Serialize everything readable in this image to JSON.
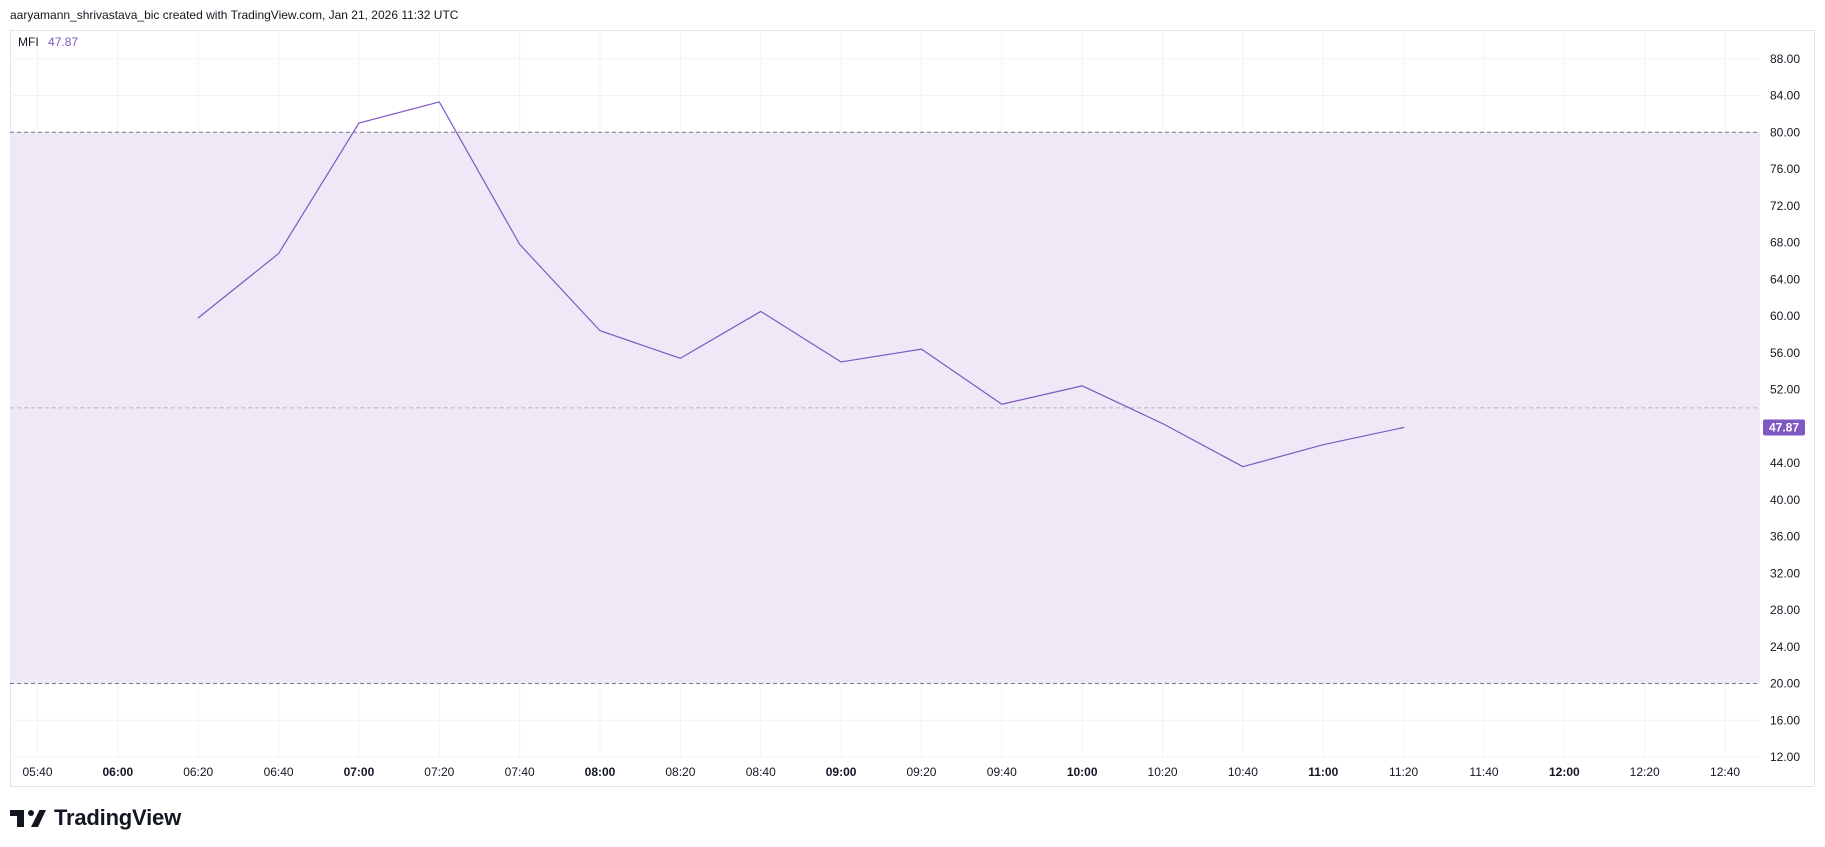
{
  "header": {
    "text": "aaryamann_shrivastava_bic created with TradingView.com, Jan 21, 2026 11:32 UTC"
  },
  "legend": {
    "name": "MFI",
    "value": "47.87"
  },
  "logo": {
    "text": "TradingView"
  },
  "colors": {
    "line": "#7e57c2",
    "band_fill": "#ede7f6",
    "label_bg": "#7e57c2",
    "grid": "#f0f3fa",
    "axis_text": "#131722"
  },
  "chart_data": {
    "type": "line",
    "title": "",
    "xlabel": "",
    "ylabel": "",
    "ylim": [
      10,
      90
    ],
    "yticks": [
      12,
      16,
      20,
      24,
      28,
      32,
      36,
      40,
      44,
      48,
      52,
      56,
      60,
      64,
      68,
      72,
      76,
      80,
      84,
      88
    ],
    "ytick_labels": [
      "12.00",
      "16.00",
      "20.00",
      "24.00",
      "28.00",
      "32.00",
      "36.00",
      "40.00",
      "44.00",
      "",
      "52.00",
      "56.00",
      "60.00",
      "64.00",
      "68.00",
      "72.00",
      "76.00",
      "80.00",
      "84.00",
      "88.00"
    ],
    "xticks": [
      "05:40",
      "06:00",
      "06:20",
      "06:40",
      "07:00",
      "07:20",
      "07:40",
      "08:00",
      "08:20",
      "08:40",
      "09:00",
      "09:20",
      "09:40",
      "10:00",
      "10:20",
      "10:40",
      "11:00",
      "11:20",
      "11:40",
      "12:00",
      "12:20",
      "12:40"
    ],
    "xticks_bold": [
      "06:00",
      "07:00",
      "08:00",
      "09:00",
      "10:00",
      "11:00",
      "12:00"
    ],
    "x": [
      "06:20",
      "06:40",
      "07:00",
      "07:20",
      "07:40",
      "08:00",
      "08:20",
      "08:40",
      "09:00",
      "09:20",
      "09:40",
      "10:00",
      "10:20",
      "10:40",
      "11:00",
      "11:20"
    ],
    "series": [
      {
        "name": "MFI",
        "values": [
          59.8,
          66.8,
          81.0,
          83.3,
          67.8,
          58.4,
          55.4,
          60.5,
          55.0,
          56.4,
          50.4,
          52.4,
          48.3,
          43.6,
          46.0,
          47.87
        ]
      }
    ],
    "bands": {
      "upper": 80,
      "middle": 50,
      "lower": 20
    },
    "last_value_label": "47.87",
    "last_value": 47.87,
    "grid": true,
    "legend_position": "top-left"
  }
}
